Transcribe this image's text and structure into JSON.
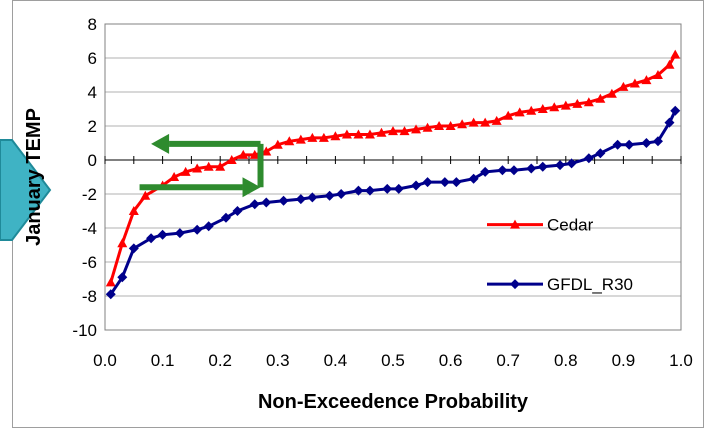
{
  "chart_data": {
    "type": "line",
    "xlabel": "Non-Exceedence Probability",
    "ylabel": "January TEMP",
    "xlim": [
      0.0,
      1.0
    ],
    "ylim": [
      -10,
      8
    ],
    "xticks": [
      "0.0",
      "0.1",
      "0.2",
      "0.3",
      "0.4",
      "0.5",
      "0.6",
      "0.7",
      "0.8",
      "0.9",
      "1.0"
    ],
    "yticks": [
      "-10",
      "-8",
      "-6",
      "-4",
      "-2",
      "0",
      "2",
      "4",
      "6",
      "8"
    ],
    "grid": "horizontal",
    "legend_position": "lower-right",
    "series": [
      {
        "name": "Cedar",
        "color": "#ff0000",
        "marker": "triangle",
        "x": [
          0.01,
          0.03,
          0.05,
          0.07,
          0.1,
          0.12,
          0.14,
          0.16,
          0.18,
          0.2,
          0.22,
          0.24,
          0.26,
          0.28,
          0.3,
          0.32,
          0.34,
          0.36,
          0.38,
          0.4,
          0.42,
          0.44,
          0.46,
          0.48,
          0.5,
          0.52,
          0.54,
          0.56,
          0.58,
          0.6,
          0.62,
          0.64,
          0.66,
          0.68,
          0.7,
          0.72,
          0.74,
          0.76,
          0.78,
          0.8,
          0.82,
          0.84,
          0.86,
          0.88,
          0.9,
          0.92,
          0.94,
          0.96,
          0.98,
          0.99
        ],
        "values": [
          -7.2,
          -4.9,
          -3.0,
          -2.1,
          -1.5,
          -1.0,
          -0.7,
          -0.5,
          -0.4,
          -0.4,
          0.0,
          0.3,
          0.3,
          0.5,
          0.9,
          1.1,
          1.2,
          1.3,
          1.3,
          1.4,
          1.5,
          1.5,
          1.5,
          1.6,
          1.7,
          1.7,
          1.8,
          1.9,
          2.0,
          2.0,
          2.1,
          2.2,
          2.2,
          2.3,
          2.6,
          2.8,
          2.9,
          3.0,
          3.1,
          3.2,
          3.3,
          3.4,
          3.6,
          3.9,
          4.3,
          4.5,
          4.7,
          5.0,
          5.6,
          6.2
        ]
      },
      {
        "name": "GFDL_R30",
        "color": "#00008b",
        "marker": "diamond",
        "x": [
          0.01,
          0.03,
          0.05,
          0.08,
          0.1,
          0.13,
          0.16,
          0.18,
          0.21,
          0.23,
          0.26,
          0.28,
          0.31,
          0.34,
          0.36,
          0.39,
          0.41,
          0.44,
          0.46,
          0.49,
          0.51,
          0.54,
          0.56,
          0.59,
          0.61,
          0.64,
          0.66,
          0.69,
          0.71,
          0.74,
          0.76,
          0.79,
          0.81,
          0.84,
          0.86,
          0.89,
          0.91,
          0.94,
          0.96,
          0.98,
          0.99
        ],
        "values": [
          -7.9,
          -6.9,
          -5.2,
          -4.6,
          -4.4,
          -4.3,
          -4.1,
          -3.9,
          -3.4,
          -3.0,
          -2.6,
          -2.5,
          -2.4,
          -2.3,
          -2.2,
          -2.1,
          -2.0,
          -1.8,
          -1.8,
          -1.7,
          -1.7,
          -1.5,
          -1.3,
          -1.3,
          -1.3,
          -1.1,
          -0.7,
          -0.6,
          -0.6,
          -0.5,
          -0.4,
          -0.3,
          -0.2,
          0.1,
          0.4,
          0.9,
          0.9,
          1.0,
          1.1,
          2.2,
          2.9
        ]
      }
    ],
    "annotations": [
      {
        "kind": "arrow",
        "color": "#2e8b2e",
        "direction": "right",
        "at_y": -1.6,
        "x_from": 0.06,
        "x_to": 0.27
      },
      {
        "kind": "arrow",
        "color": "#2e8b2e",
        "direction": "left",
        "at_y": 0.95,
        "x_from": 0.27,
        "x_to": 0.08
      },
      {
        "kind": "line",
        "color": "#2e8b2e",
        "at_x": 0.27,
        "y_from": -1.6,
        "y_to": 0.95
      }
    ]
  },
  "nav_arrow_color": "#3fb3c4"
}
